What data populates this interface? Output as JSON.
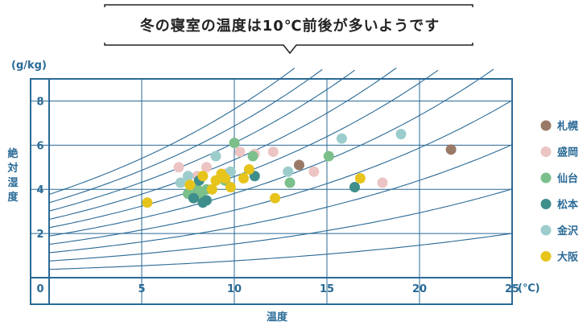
{
  "colors": {
    "axis": "#2a6a96",
    "sapporo": "#9a7a66",
    "morioka": "#ecc4c4",
    "sendai": "#7bbf8a",
    "matsumoto": "#3e8e8c",
    "kanazawa": "#9ccdcc",
    "osaka": "#e6c41c"
  },
  "chart_data": {
    "type": "scatter",
    "title": "冬の寝室の温度は10℃前後が多いようです",
    "xlabel": "温度",
    "ylabel": "絶対湿度",
    "xunit": "(℃)",
    "yunit": "(g/kg)",
    "xlim": [
      0,
      25
    ],
    "ylim": [
      0,
      9
    ],
    "below_zero_label": "0",
    "x_ticks": [
      5,
      10,
      15,
      20,
      25
    ],
    "y_ticks": [
      2,
      4,
      6,
      8
    ],
    "grid": true,
    "rh_curves_percent": [
      10,
      20,
      30,
      40,
      50,
      60,
      70,
      80,
      90,
      100
    ],
    "series": [
      {
        "name": "札幌",
        "color_key": "sapporo",
        "x": [
          13.5,
          21.7
        ],
        "y": [
          5.1,
          5.8
        ]
      },
      {
        "name": "盛岡",
        "color_key": "morioka",
        "x": [
          7.0,
          8.0,
          8.5,
          9.5,
          10.3,
          11.1,
          12.1,
          14.3,
          18.0
        ],
        "y": [
          5.0,
          4.6,
          5.0,
          4.7,
          5.7,
          5.6,
          5.7,
          4.8,
          4.3
        ]
      },
      {
        "name": "仙台",
        "color_key": "sendai",
        "x": [
          7.5,
          8.0,
          8.2,
          8.5,
          9.5,
          10.0,
          11.0,
          13.0,
          15.1
        ],
        "y": [
          3.8,
          4.0,
          3.7,
          4.0,
          4.4,
          6.1,
          5.5,
          4.3,
          5.5
        ]
      },
      {
        "name": "松本",
        "color_key": "matsumoto",
        "x": [
          7.8,
          8.1,
          8.3,
          8.5,
          11.1,
          16.5
        ],
        "y": [
          3.6,
          4.4,
          3.4,
          3.5,
          4.6,
          4.1
        ]
      },
      {
        "name": "金沢",
        "color_key": "kanazawa",
        "x": [
          7.1,
          7.5,
          9.0,
          9.8,
          12.9,
          15.8,
          19.0
        ],
        "y": [
          4.3,
          4.6,
          5.5,
          4.8,
          4.8,
          6.3,
          6.5
        ]
      },
      {
        "name": "大阪",
        "color_key": "osaka",
        "x": [
          5.3,
          7.6,
          8.3,
          8.8,
          9.0,
          9.3,
          9.5,
          9.8,
          10.5,
          10.8,
          12.2,
          16.8
        ],
        "y": [
          3.4,
          4.2,
          4.6,
          4.0,
          4.4,
          4.7,
          4.5,
          4.1,
          4.5,
          4.9,
          3.6,
          4.5
        ]
      }
    ]
  }
}
